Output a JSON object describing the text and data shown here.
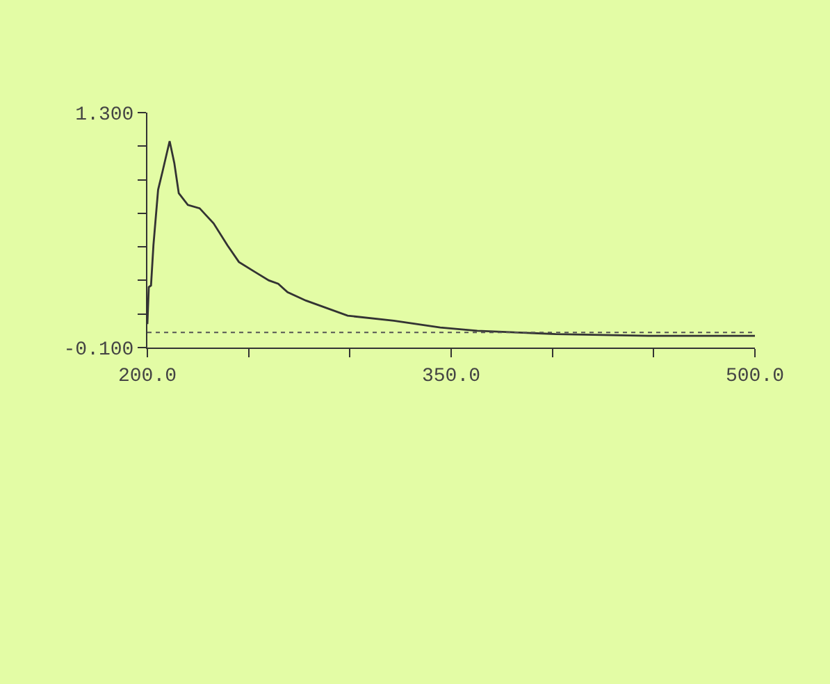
{
  "chart_data": {
    "type": "line",
    "x": [
      200,
      200.7,
      201.8,
      203,
      205.3,
      207.5,
      211,
      213.3,
      215.5,
      220,
      225.8,
      232.7,
      239.5,
      245.2,
      253.2,
      260,
      264.6,
      269.2,
      278.3,
      298.9,
      321.7,
      344.6,
      362.9,
      383.4,
      401.7,
      447.4,
      500
    ],
    "series": [
      {
        "color": "#333333",
        "values": [
          0.04,
          0.26,
          0.27,
          0.51,
          0.84,
          0.95,
          1.13,
          1.0,
          0.82,
          0.75,
          0.73,
          0.64,
          0.51,
          0.41,
          0.35,
          0.3,
          0.28,
          0.23,
          0.18,
          0.09,
          0.06,
          0.02,
          0.0,
          -0.01,
          -0.02,
          -0.03,
          -0.03
        ]
      }
    ],
    "xlim": [
      200,
      500
    ],
    "xticks": [
      {
        "value": 200,
        "label": "200.0"
      },
      {
        "value": 250,
        "label": null
      },
      {
        "value": 300,
        "label": null
      },
      {
        "value": 350,
        "label": "350.0"
      },
      {
        "value": 400,
        "label": null
      },
      {
        "value": 450,
        "label": null
      },
      {
        "value": 500,
        "label": "500.0"
      }
    ],
    "ylim": [
      -0.1,
      1.3
    ],
    "yticks": [
      {
        "value": -0.1,
        "label": "-0.100"
      },
      {
        "value": 0.1,
        "label": null
      },
      {
        "value": 0.3,
        "label": null
      },
      {
        "value": 0.5,
        "label": null
      },
      {
        "value": 0.7,
        "label": null
      },
      {
        "value": 0.9,
        "label": null
      },
      {
        "value": 1.1,
        "label": null
      },
      {
        "value": 1.3,
        "label": "1.300"
      }
    ],
    "ref_lines": [
      {
        "axis": "y",
        "value": -0.01,
        "color": "#555555",
        "line_style": "dotted"
      }
    ],
    "grid": false,
    "marker": "none",
    "line_style": "solid"
  }
}
